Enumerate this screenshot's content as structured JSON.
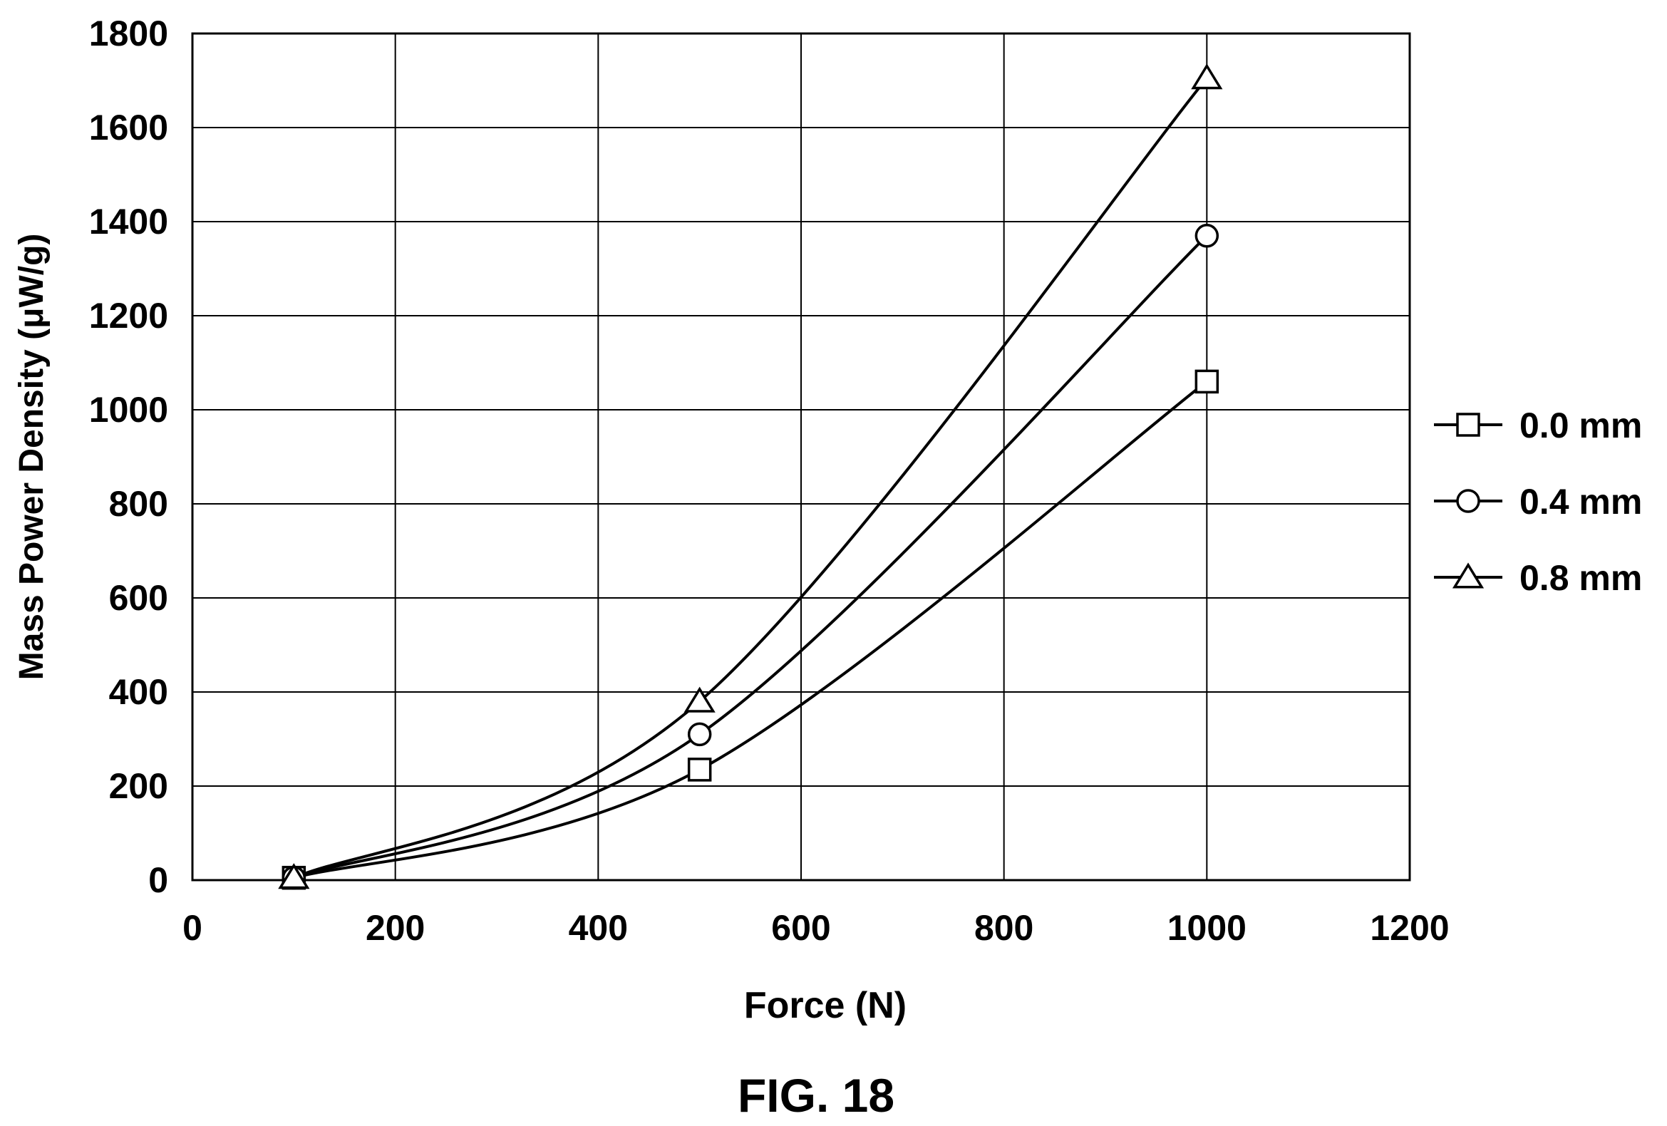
{
  "figure_caption": "FIG. 18",
  "chart_data": {
    "type": "line",
    "xlabel": "Force (N)",
    "ylabel": "Mass Power Density (μW/g)",
    "xlim": [
      0,
      1200
    ],
    "ylim": [
      0,
      1800
    ],
    "xticks": [
      0,
      200,
      400,
      600,
      800,
      1000,
      1200
    ],
    "yticks": [
      0,
      200,
      400,
      600,
      800,
      1000,
      1200,
      1400,
      1600,
      1800
    ],
    "grid": true,
    "legend_position": "right",
    "x": [
      100,
      500,
      1000
    ],
    "series": [
      {
        "name": "0.0 mm",
        "marker": "square",
        "values": [
          5,
          235,
          1060
        ]
      },
      {
        "name": "0.4 mm",
        "marker": "circle",
        "values": [
          5,
          310,
          1370
        ]
      },
      {
        "name": "0.8 mm",
        "marker": "triangle",
        "values": [
          5,
          380,
          1705
        ]
      }
    ]
  }
}
